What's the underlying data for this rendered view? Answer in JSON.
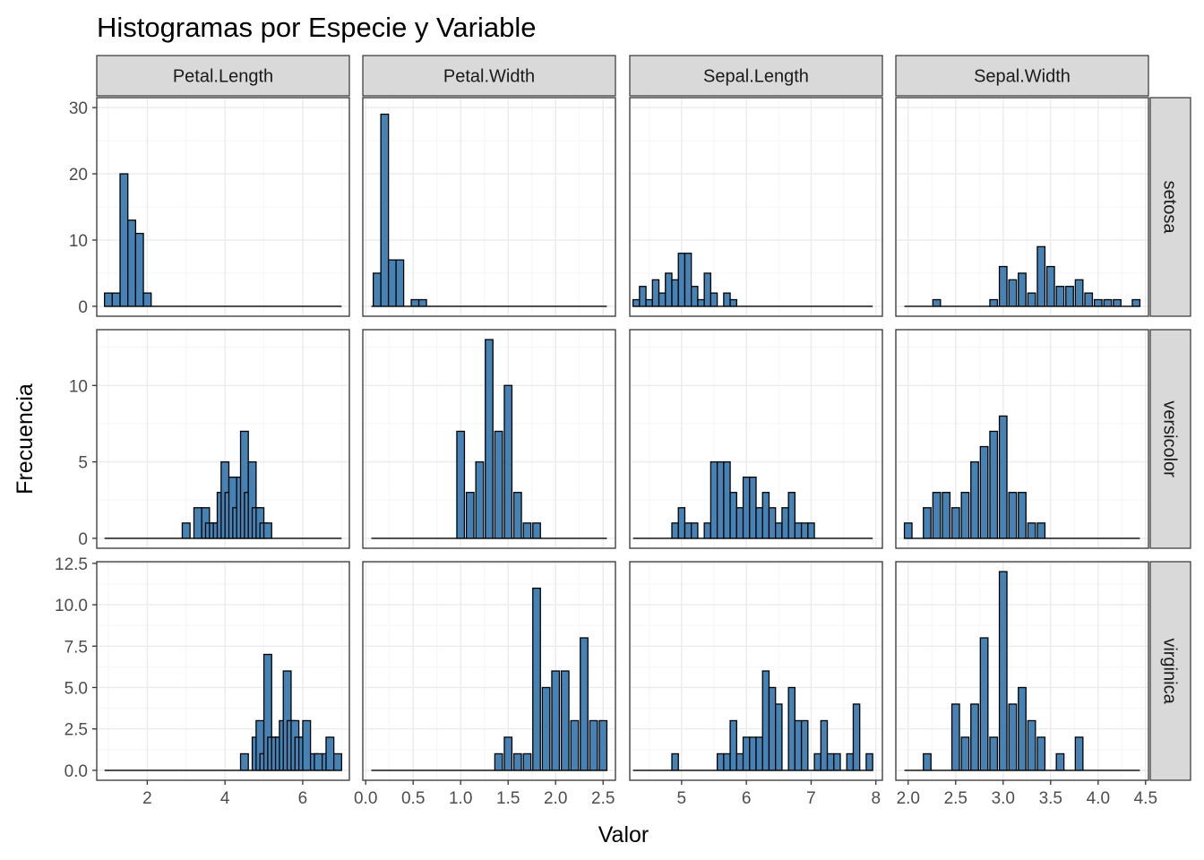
{
  "chart_data": {
    "type": "bar",
    "title": "Histogramas por Especie y Variable",
    "xlabel": "Valor",
    "ylabel": "Frecuencia",
    "grid": true,
    "bar_fill": "#4682b4",
    "bar_stroke": "#000000",
    "strip_fill": "#d9d9d9",
    "panel_border": "#333333",
    "grid_major": "#ebebeb",
    "grid_minor": "#f5f5f5",
    "columns": [
      {
        "name": "Petal.Length",
        "xlim": [
          0.7,
          7.2
        ],
        "xticks": [
          2,
          4,
          6
        ],
        "xticklabels": [
          "2",
          "4",
          "6"
        ],
        "xminor": [
          1,
          3,
          5,
          7
        ],
        "bin_width": 0.2,
        "baseline": [
          1.0,
          6.9
        ]
      },
      {
        "name": "Petal.Width",
        "xlim": [
          -0.03,
          2.63
        ],
        "xticks": [
          0.0,
          0.5,
          1.0,
          1.5,
          2.0,
          2.5
        ],
        "xticklabels": [
          "0.0",
          "0.5",
          "1.0",
          "1.5",
          "2.0",
          "2.5"
        ],
        "xminor": [
          0.25,
          0.75,
          1.25,
          1.75,
          2.25
        ],
        "bin_width": 0.08,
        "baseline": [
          0.1,
          2.5
        ]
      },
      {
        "name": "Sepal.Length",
        "xlim": [
          4.2,
          8.1
        ],
        "xticks": [
          5,
          6,
          7,
          8
        ],
        "xticklabels": [
          "5",
          "6",
          "7",
          "8"
        ],
        "xminor": [
          4.5,
          5.5,
          6.5,
          7.5
        ],
        "bin_width": 0.1,
        "baseline": [
          4.3,
          7.9
        ]
      },
      {
        "name": "Sepal.Width",
        "xlim": [
          1.87,
          4.53
        ],
        "xticks": [
          2.0,
          2.5,
          3.0,
          3.5,
          4.0,
          4.5
        ],
        "xticklabels": [
          "2.0",
          "2.5",
          "3.0",
          "3.5",
          "4.0",
          "4.5"
        ],
        "xminor": [
          2.25,
          2.75,
          3.25,
          3.75,
          4.25
        ],
        "bin_width": 0.08,
        "baseline": [
          2.0,
          4.4
        ]
      }
    ],
    "rows": [
      {
        "name": "setosa",
        "ylim": [
          -1.5,
          31.5
        ],
        "yticks": [
          0,
          10,
          20,
          30
        ],
        "yticklabels": [
          "0",
          "10",
          "20",
          "30"
        ],
        "yminor": [
          5,
          15,
          25
        ]
      },
      {
        "name": "versicolor",
        "ylim": [
          -0.65,
          13.65
        ],
        "yticks": [
          0,
          5,
          10
        ],
        "yticklabels": [
          "0",
          "5",
          "10"
        ],
        "yminor": [
          2.5,
          7.5,
          12.5
        ]
      },
      {
        "name": "virginica",
        "ylim": [
          -0.6,
          12.6
        ],
        "yticks": [
          0,
          2.5,
          5,
          7.5,
          10,
          12.5
        ],
        "yticklabels": [
          "0.0",
          "2.5",
          "5.0",
          "7.5",
          "10.0",
          "12.5"
        ],
        "yminor": [
          1.25,
          3.75,
          6.25,
          8.75,
          11.25
        ]
      }
    ],
    "panels": [
      [
        {
          "x": [
            1.0,
            1.2,
            1.4,
            1.6,
            1.8,
            2.0
          ],
          "y": [
            2,
            2,
            20,
            13,
            11,
            2
          ]
        },
        {
          "x": [
            0.12,
            0.2,
            0.28,
            0.36,
            0.44,
            0.52,
            0.6
          ],
          "y": [
            5,
            29,
            7,
            7,
            0,
            1,
            1
          ]
        },
        {
          "x": [
            4.3,
            4.4,
            4.5,
            4.6,
            4.7,
            4.8,
            4.9,
            5.0,
            5.1,
            5.2,
            5.3,
            5.4,
            5.5,
            5.7,
            5.8
          ],
          "y": [
            1,
            3,
            1,
            4,
            2,
            5,
            4,
            8,
            8,
            3,
            1,
            5,
            2,
            2,
            1
          ]
        },
        {
          "x": [
            2.3,
            2.9,
            3.0,
            3.1,
            3.2,
            3.3,
            3.4,
            3.5,
            3.6,
            3.7,
            3.8,
            3.9,
            4.0,
            4.1,
            4.2,
            4.4
          ],
          "y": [
            1,
            1,
            6,
            4,
            5,
            2,
            9,
            6,
            3,
            3,
            4,
            2,
            1,
            1,
            1,
            1
          ]
        }
      ],
      [
        {
          "x": [
            3.0,
            3.3,
            3.5,
            3.6,
            3.7,
            3.8,
            3.9,
            4.0,
            4.1,
            4.2,
            4.3,
            4.4,
            4.5,
            4.6,
            4.7,
            4.8,
            4.9,
            5.0,
            5.1
          ],
          "y": [
            1,
            2,
            2,
            1,
            1,
            1,
            3,
            5,
            3,
            4,
            2,
            4,
            7,
            3,
            5,
            2,
            2,
            1,
            1
          ]
        },
        {
          "x": [
            1.0,
            1.1,
            1.2,
            1.3,
            1.4,
            1.5,
            1.6,
            1.7,
            1.8
          ],
          "y": [
            7,
            3,
            5,
            13,
            7,
            10,
            3,
            1,
            1
          ]
        },
        {
          "x": [
            4.9,
            5.0,
            5.1,
            5.2,
            5.4,
            5.5,
            5.6,
            5.7,
            5.8,
            5.9,
            6.0,
            6.1,
            6.2,
            6.3,
            6.4,
            6.5,
            6.6,
            6.7,
            6.8,
            6.9,
            7.0
          ],
          "y": [
            1,
            2,
            1,
            1,
            1,
            5,
            5,
            5,
            3,
            2,
            4,
            4,
            2,
            3,
            2,
            1,
            2,
            3,
            1,
            1,
            1
          ]
        },
        {
          "x": [
            2.0,
            2.2,
            2.3,
            2.4,
            2.5,
            2.6,
            2.7,
            2.8,
            2.9,
            3.0,
            3.1,
            3.2,
            3.3,
            3.4
          ],
          "y": [
            1,
            2,
            3,
            3,
            2,
            3,
            5,
            6,
            7,
            8,
            3,
            3,
            1,
            1
          ]
        }
      ],
      [
        {
          "x": [
            4.5,
            4.8,
            4.9,
            5.0,
            5.1,
            5.2,
            5.3,
            5.4,
            5.5,
            5.6,
            5.7,
            5.8,
            5.9,
            6.0,
            6.1,
            6.3,
            6.4,
            6.6,
            6.7,
            6.9
          ],
          "y": [
            1,
            2,
            3,
            1,
            7,
            2,
            2,
            2,
            3,
            6,
            3,
            3,
            2,
            2,
            3,
            1,
            1,
            1,
            2,
            1
          ]
        },
        {
          "x": [
            1.4,
            1.5,
            1.6,
            1.7,
            1.8,
            1.9,
            2.0,
            2.1,
            2.2,
            2.3,
            2.4,
            2.5
          ],
          "y": [
            1,
            2,
            1,
            1,
            11,
            5,
            6,
            6,
            3,
            8,
            3,
            3
          ]
        },
        {
          "x": [
            4.9,
            5.6,
            5.7,
            5.8,
            5.9,
            6.0,
            6.1,
            6.2,
            6.3,
            6.4,
            6.5,
            6.7,
            6.8,
            6.9,
            7.1,
            7.2,
            7.3,
            7.4,
            7.6,
            7.7,
            7.9
          ],
          "y": [
            1,
            1,
            1,
            3,
            1,
            2,
            2,
            2,
            6,
            5,
            4,
            5,
            3,
            3,
            1,
            3,
            1,
            1,
            1,
            4,
            1
          ]
        },
        {
          "x": [
            2.2,
            2.5,
            2.6,
            2.7,
            2.8,
            2.9,
            3.0,
            3.1,
            3.2,
            3.3,
            3.4,
            3.6,
            3.8
          ],
          "y": [
            1,
            4,
            2,
            4,
            8,
            2,
            12,
            4,
            5,
            3,
            2,
            1,
            2
          ]
        }
      ]
    ]
  }
}
